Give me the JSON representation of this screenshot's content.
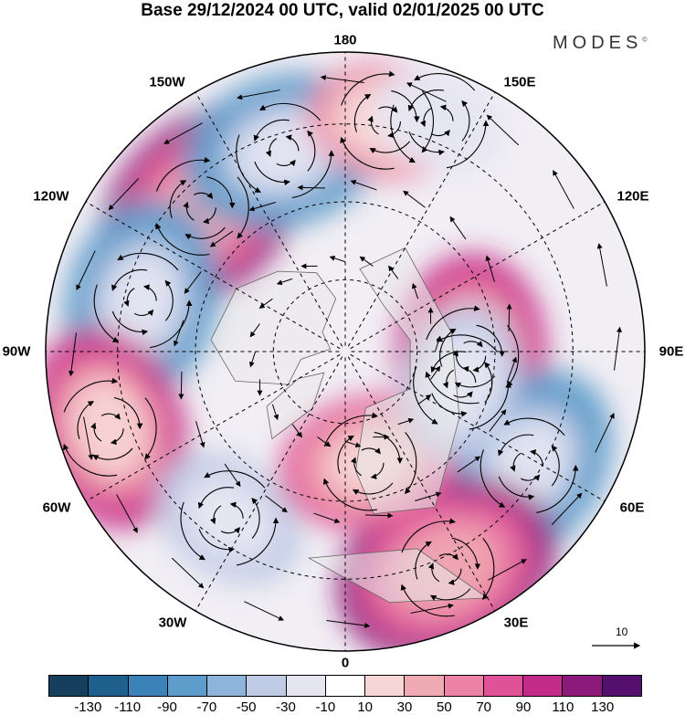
{
  "title": "Base 29/12/2024 00 UTC, valid 02/01/2025 00 UTC",
  "brand": "MODES",
  "brand_mark": "©",
  "longitude_labels": {
    "top": "180",
    "top_left": "150W",
    "top_right": "150E",
    "upper_left": "120W",
    "upper_right": "120E",
    "left": "90W",
    "right": "90E",
    "lower_left": "60W",
    "lower_right": "60E",
    "bottom_left": "30W",
    "bottom_right": "30E",
    "bottom": "0"
  },
  "reference_vector_label": "10",
  "colorbar": {
    "colors": [
      "#163f5e",
      "#1f5f8e",
      "#3a82b8",
      "#5e9dcb",
      "#8fb4dc",
      "#c0cbe6",
      "#e6e6f2",
      "#ffffff",
      "#f7d6d6",
      "#f0aab3",
      "#ec82a6",
      "#e05298",
      "#c42a87",
      "#8c1a7a",
      "#55106e"
    ],
    "tick_labels": [
      "-130",
      "-110",
      "-90",
      "-70",
      "-50",
      "-30",
      "-10",
      "10",
      "30",
      "50",
      "70",
      "90",
      "110",
      "130"
    ]
  },
  "map": {
    "projection": "north polar stereographic",
    "anomaly_centers": [
      {
        "lon_region": "120W-150W",
        "sign": "positive",
        "value": 110
      },
      {
        "lon_region": "150W-180",
        "sign": "negative",
        "value": -90
      },
      {
        "lon_region": "170E",
        "sign": "positive",
        "value": 50
      },
      {
        "lon_region": "160E",
        "sign": "negative",
        "value": -30
      },
      {
        "lon_region": "90W-110W",
        "sign": "negative",
        "value": -90
      },
      {
        "lon_region": "60W-80W",
        "sign": "positive",
        "value": 90
      },
      {
        "lon_region": "90E",
        "sign": "positive",
        "value": 90
      },
      {
        "lon_region": "60E",
        "sign": "negative",
        "value": -90
      },
      {
        "lon_region": "20E-30E",
        "sign": "positive",
        "value": 110
      },
      {
        "lon_region": "30W-40W",
        "sign": "negative",
        "value": -50
      },
      {
        "lon_region": "10E",
        "sign": "positive",
        "value": 70
      },
      {
        "lon_region": "70E-80E",
        "sign": "negative",
        "value": -50
      }
    ]
  }
}
